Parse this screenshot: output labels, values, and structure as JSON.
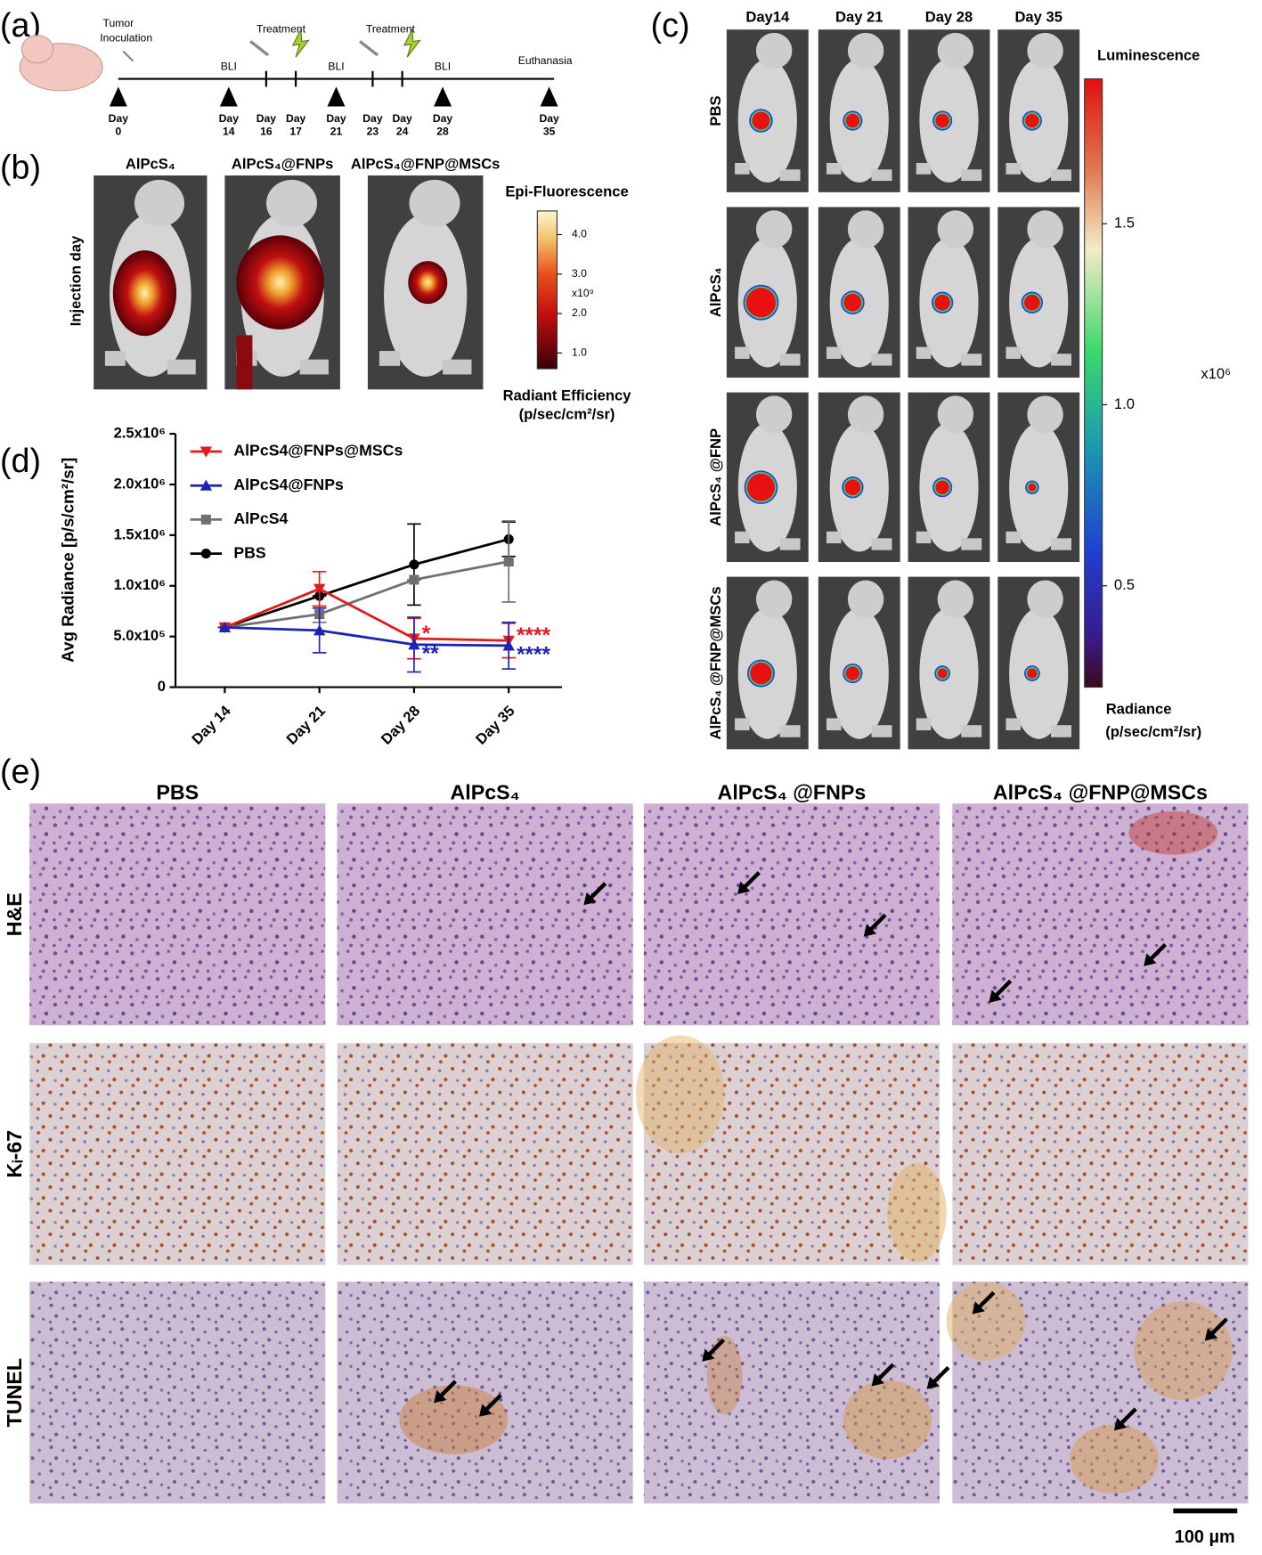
{
  "panels": {
    "a": {
      "letter": "(a)",
      "events": [
        {
          "lines": [
            "Tumor",
            "Inoculation"
          ]
        },
        {
          "lines": [
            "BLI"
          ]
        },
        {
          "lines": [
            "Treatment"
          ]
        },
        {
          "lines": [
            "BLI"
          ]
        },
        {
          "lines": [
            "Treatment"
          ]
        },
        {
          "lines": [
            "BLI"
          ]
        },
        {
          "lines": [
            "Euthanasia"
          ]
        }
      ],
      "day_label": "Day",
      "days": [
        0,
        14,
        16,
        17,
        21,
        23,
        24,
        28,
        35
      ]
    },
    "b": {
      "letter": "(b)",
      "columns": [
        "AlPcS₄",
        "AlPcS₄@FNPs",
        "AlPcS₄@FNP@MSCs"
      ],
      "row_label": "Injection day",
      "colorbar": {
        "title": "Epi-Fluorescence",
        "lim": [
          0.6,
          4.6
        ],
        "ticks": [
          {
            "value": 1,
            "label": "1.0"
          },
          {
            "value": 2,
            "label": "2.0"
          },
          {
            "value": 3,
            "label": "3.0"
          },
          {
            "value": 4,
            "label": "4.0"
          }
        ],
        "multiplier": "x10⁹",
        "unit_lines": [
          "Radiant Efficiency",
          "(p/sec/cm²/sr)"
        ]
      }
    },
    "c": {
      "letter": "(c)",
      "columns": [
        "Day14",
        "Day 21",
        "Day 28",
        "Day 35"
      ],
      "rows": [
        "PBS",
        "AlPcS₄",
        "AlPcS₄ @FNP",
        "AlPcS₄ @FNP@MSCs"
      ],
      "colorbar": {
        "title": "Luminescence",
        "lim": [
          0.22,
          1.9
        ],
        "ticks": [
          {
            "value": 0.5,
            "label": "0.5"
          },
          {
            "value": 1,
            "label": "1.0"
          },
          {
            "value": 1.5,
            "label": "1.5"
          }
        ],
        "multiplier": "x10⁶",
        "unit_lines": [
          "Radiance",
          "(p/sec/cm²/sr)"
        ]
      }
    },
    "d": {
      "letter": "(d)"
    },
    "e": {
      "letter": "(e)",
      "columns": [
        "PBS",
        "AlPcS₄",
        "AlPcS₄ @FNPs",
        "AlPcS₄ @FNP@MSCs"
      ],
      "rows": [
        "H&E",
        "Kᵢ-67",
        "TUNEL"
      ],
      "scale_bar": "100 µm"
    }
  },
  "chart_data": {
    "type": "line",
    "ylabel": "Avg Radiance [p/s/cm²/sr]",
    "categories": [
      "Day 14",
      "Day 21",
      "Day 28",
      "Day 35"
    ],
    "ylim": [
      0,
      2500000
    ],
    "yticks": [
      0,
      {
        "value": 500000,
        "label": "5.0x10⁵"
      },
      {
        "value": 1000000,
        "label": "1.0x10⁶"
      },
      {
        "value": 1500000,
        "label": "1.5x10⁶"
      },
      {
        "value": 2000000,
        "label": "2.0x10⁶"
      },
      {
        "value": 2500000,
        "label": "2.5x10⁶"
      }
    ],
    "series": [
      {
        "name": "AlPcS4@FNPs@MSCs",
        "color": "#e01b1b",
        "marker": "triangle-down",
        "values": [
          590000,
          970000,
          480000,
          460000
        ],
        "errors": [
          0,
          170000,
          200000,
          170000
        ],
        "stars": [
          null,
          null,
          "*",
          "****"
        ]
      },
      {
        "name": "AlPcS4@FNPs",
        "color": "#1c22b4",
        "marker": "triangle-up",
        "values": [
          590000,
          560000,
          420000,
          410000
        ],
        "errors": [
          0,
          220000,
          270000,
          230000
        ],
        "stars": [
          null,
          null,
          "**",
          "****"
        ]
      },
      {
        "name": "AlPcS4",
        "color": "#707070",
        "marker": "square",
        "values": [
          590000,
          720000,
          1060000,
          1240000
        ],
        "errors": [
          0,
          80000,
          0,
          400000
        ]
      },
      {
        "name": "PBS",
        "color": "#000000",
        "marker": "circle",
        "values": [
          590000,
          900000,
          1210000,
          1460000
        ],
        "errors": [
          0,
          0,
          400000,
          170000
        ]
      }
    ]
  }
}
